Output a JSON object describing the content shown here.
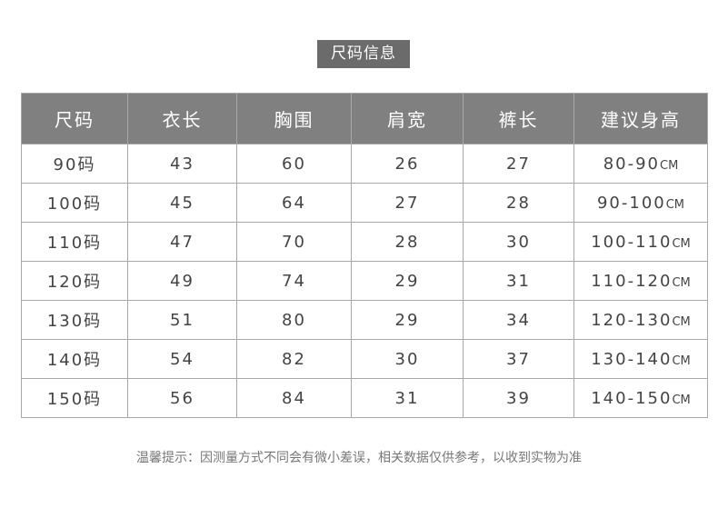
{
  "title": "尺码信息",
  "table": {
    "headers": [
      "尺码",
      "衣长",
      "胸围",
      "肩宽",
      "裤长",
      "建议身高"
    ],
    "rows": [
      [
        "90码",
        "43",
        "60",
        "26",
        "27",
        "80-90",
        "CM"
      ],
      [
        "100码",
        "45",
        "64",
        "27",
        "28",
        "90-100",
        "CM"
      ],
      [
        "110码",
        "47",
        "70",
        "28",
        "30",
        "100-110",
        "CM"
      ],
      [
        "120码",
        "49",
        "74",
        "29",
        "31",
        "110-120",
        "CM"
      ],
      [
        "130码",
        "51",
        "80",
        "29",
        "34",
        "120-130",
        "CM"
      ],
      [
        "140码",
        "54",
        "82",
        "30",
        "37",
        "130-140",
        "CM"
      ],
      [
        "150码",
        "56",
        "84",
        "31",
        "39",
        "140-150",
        "CM"
      ]
    ]
  },
  "note": "温馨提示：因测量方式不同会有微小差误，相关数据仅供参考，以收到实物为准",
  "colors": {
    "header_bg": "#808080",
    "title_bg": "#6b6b6b",
    "border": "#a8a8a8"
  }
}
